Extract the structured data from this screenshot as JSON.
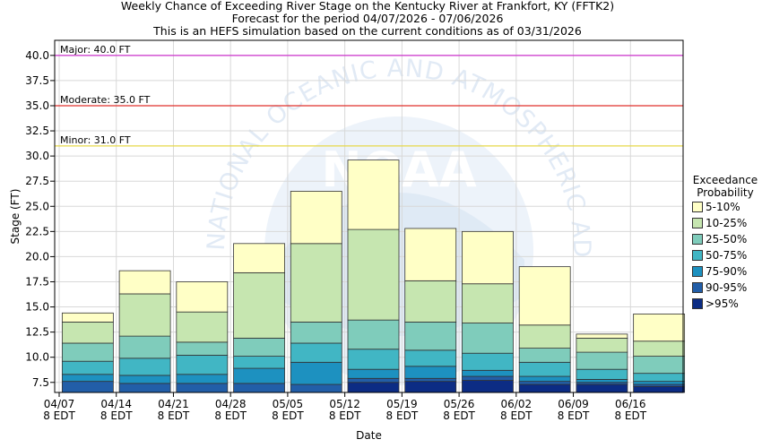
{
  "titles": [
    "Weekly Chance of Exceeding River Stage on the Kentucky River at Frankfort, KY (FFTK2)",
    "Forecast for the period 04/07/2026 - 07/06/2026",
    "This is an HEFS simulation based on the current conditions as of 03/31/2026"
  ],
  "watermark": {
    "ring_text": "NATIONAL OCEANIC AND ATMOSPHERIC ADMINISTRATION",
    "center_text": "NOAA"
  },
  "legend": {
    "title_line1": "Exceedance",
    "title_line2": "Probability",
    "items": [
      {
        "label": "5-10%",
        "color": "#ffffc6"
      },
      {
        "label": "10-25%",
        "color": "#c6e6b0"
      },
      {
        "label": "25-50%",
        "color": "#7fccbb"
      },
      {
        "label": "50-75%",
        "color": "#41b6c4"
      },
      {
        "label": "75-90%",
        "color": "#1d91c0"
      },
      {
        "label": "90-95%",
        "color": "#225ea8"
      },
      {
        "label": ">95%",
        "color": "#0c2c84"
      }
    ]
  },
  "chart_data": {
    "type": "bar",
    "xlabel": "Date",
    "ylabel": "Stage (FT)",
    "ylim": [
      6.5,
      41.5
    ],
    "yticks": [
      7.5,
      10.0,
      12.5,
      15.0,
      17.5,
      20.0,
      22.5,
      25.0,
      27.5,
      30.0,
      32.5,
      35.0,
      37.5,
      40.0
    ],
    "ytick_labels": [
      "7.5",
      "10.0",
      "12.5",
      "15.0",
      "17.5",
      "20.0",
      "22.5",
      "25.0",
      "27.5",
      "30.0",
      "32.5",
      "35.0",
      "37.5",
      "40.0"
    ],
    "xticks": [
      {
        "line1": "04/07",
        "line2": "8 EDT"
      },
      {
        "line1": "04/14",
        "line2": "8 EDT"
      },
      {
        "line1": "04/21",
        "line2": "8 EDT"
      },
      {
        "line1": "04/28",
        "line2": "8 EDT"
      },
      {
        "line1": "05/05",
        "line2": "8 EDT"
      },
      {
        "line1": "05/12",
        "line2": "8 EDT"
      },
      {
        "line1": "05/19",
        "line2": "8 EDT"
      },
      {
        "line1": "05/26",
        "line2": "8 EDT"
      },
      {
        "line1": "06/02",
        "line2": "8 EDT"
      },
      {
        "line1": "06/09",
        "line2": "8 EDT"
      },
      {
        "line1": "06/16",
        "line2": "8 EDT"
      }
    ],
    "thresholds": [
      {
        "label": "Major: 40.0 FT",
        "value": 40.0,
        "color": "#cc33cc"
      },
      {
        "label": "Moderate: 35.0 FT",
        "value": 35.0,
        "color": "#e0302c"
      },
      {
        "label": "Minor: 31.0 FT",
        "value": 31.0,
        "color": "#e6d84a"
      }
    ],
    "grid": true,
    "legend_position": "right",
    "bars": [
      {
        "levels": [
          6.5,
          7.6,
          8.3,
          9.6,
          11.4,
          13.5,
          14.4
        ]
      },
      {
        "levels": [
          6.5,
          7.4,
          8.2,
          9.9,
          12.1,
          16.3,
          18.6
        ]
      },
      {
        "levels": [
          6.5,
          7.4,
          8.3,
          10.2,
          11.5,
          14.5,
          17.5
        ]
      },
      {
        "levels": [
          6.5,
          7.4,
          8.9,
          10.1,
          11.9,
          18.4,
          21.3
        ]
      },
      {
        "levels": [
          6.5,
          7.3,
          9.5,
          11.4,
          13.5,
          21.3,
          26.5
        ]
      },
      {
        "levels": [
          7.5,
          7.9,
          8.8,
          10.8,
          13.7,
          22.7,
          29.6
        ]
      },
      {
        "levels": [
          7.6,
          7.9,
          9.1,
          10.7,
          13.5,
          17.6,
          22.8
        ]
      },
      {
        "levels": [
          7.7,
          8.1,
          8.7,
          10.4,
          13.4,
          17.3,
          22.5
        ]
      },
      {
        "levels": [
          7.3,
          7.6,
          8.1,
          9.5,
          10.9,
          13.2,
          19.0
        ]
      },
      {
        "levels": [
          7.3,
          7.5,
          7.8,
          8.8,
          10.5,
          11.9,
          12.3
        ]
      },
      {
        "levels": [
          7.1,
          7.3,
          7.6,
          8.4,
          10.1,
          11.6,
          14.3
        ]
      }
    ]
  }
}
